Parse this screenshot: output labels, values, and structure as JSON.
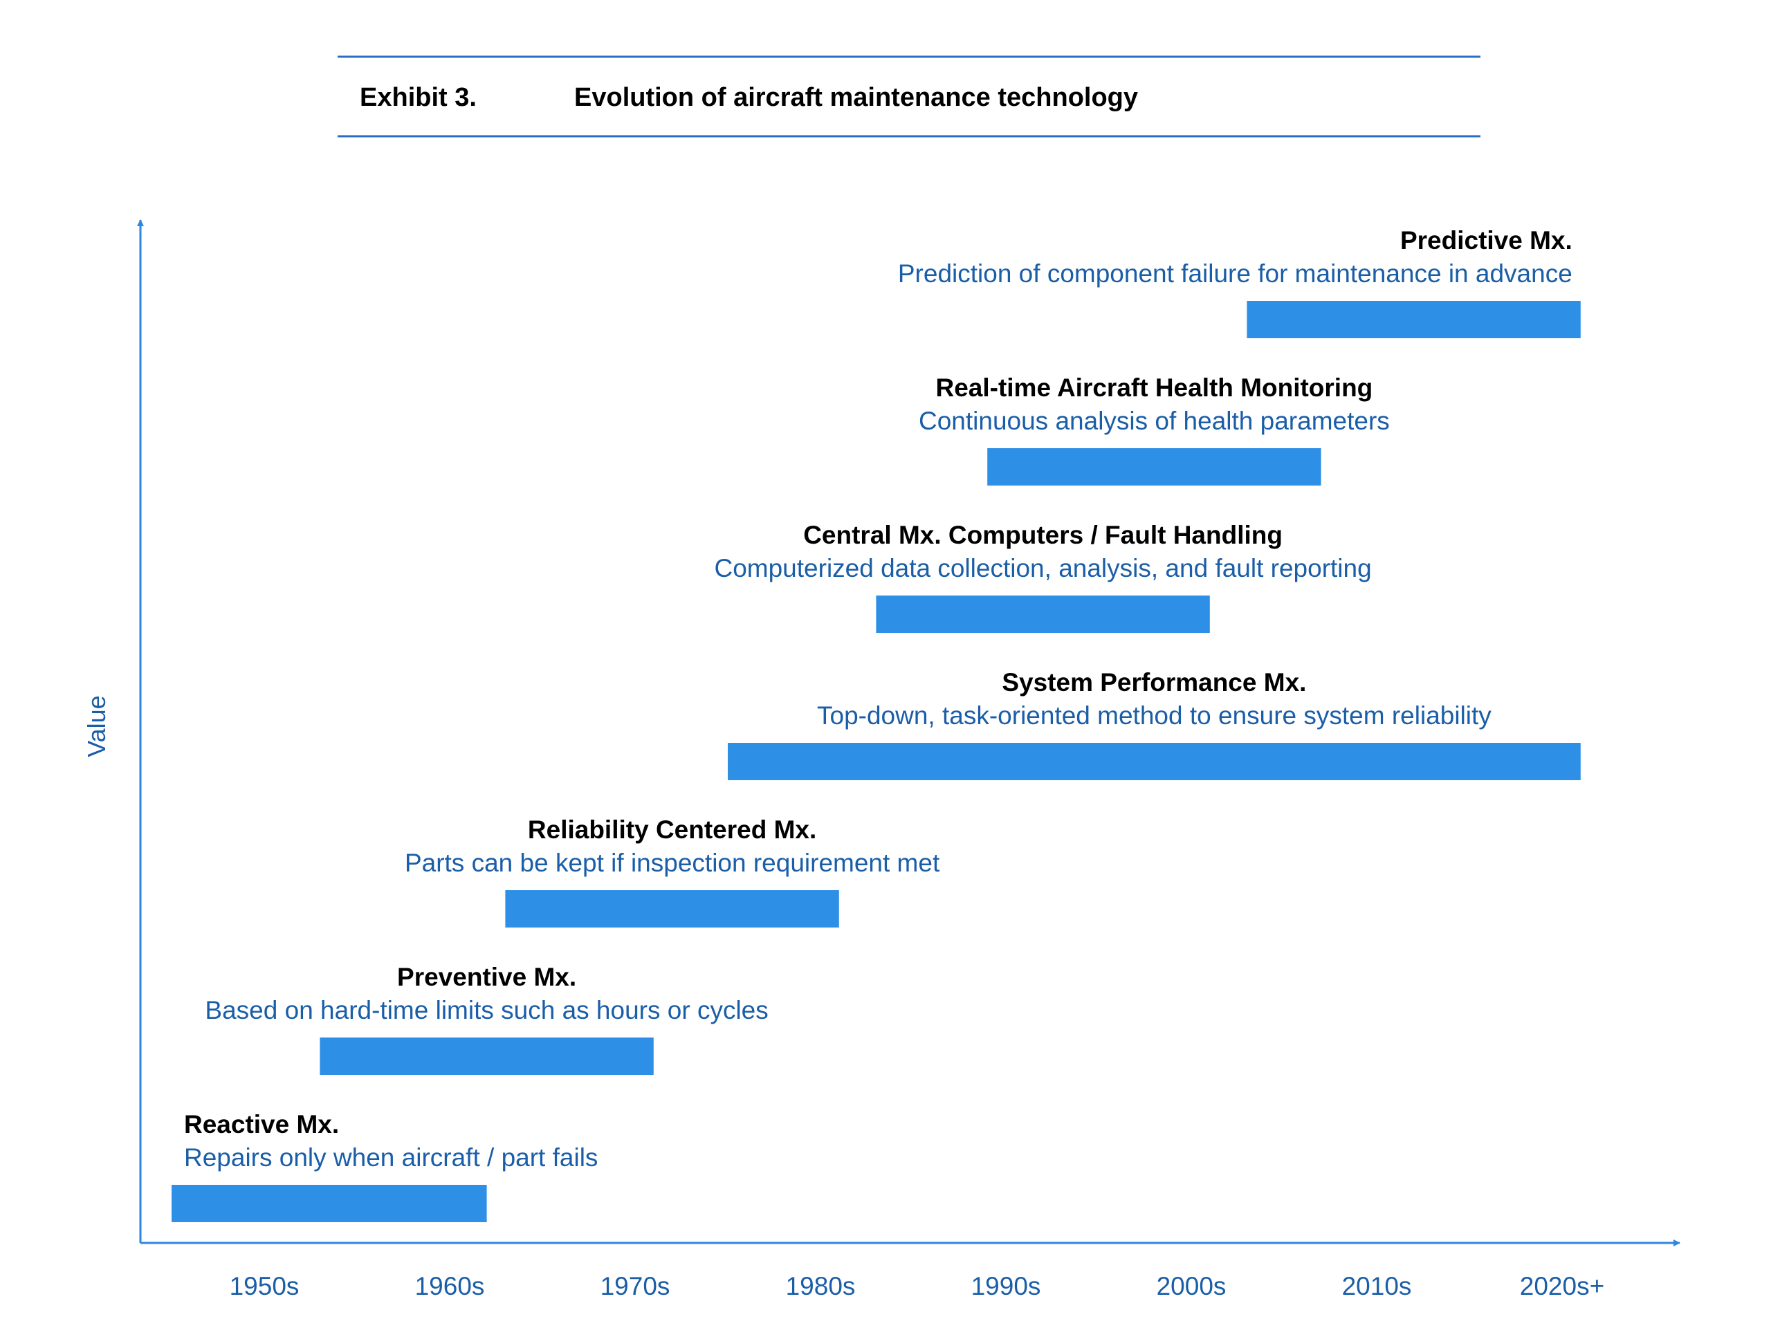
{
  "exhibit": {
    "label": "Exhibit 3.",
    "title": "Evolution of aircraft maintenance technology"
  },
  "chart_data": {
    "type": "bar",
    "orientation": "horizontal-timeline",
    "ylabel": "Value",
    "x_ticks": [
      "1950s",
      "1960s",
      "1970s",
      "1980s",
      "1990s",
      "2000s",
      "2010s",
      "2020s+"
    ],
    "x_range": [
      1950,
      2030
    ],
    "grid": false,
    "legend": "none",
    "colors": {
      "bar": "#2e8fe6",
      "axis": "#2e86de",
      "rule": "#2b6cc4"
    },
    "series": [
      {
        "name": "Reactive Mx.",
        "description": "Repairs only when aircraft / part fails",
        "start": 1950,
        "end": 1967
      },
      {
        "name": "Preventive Mx.",
        "description": "Based on hard-time limits such as hours or cycles",
        "start": 1958,
        "end": 1976
      },
      {
        "name": "Reliability Centered Mx.",
        "description": "Parts can be kept if inspection requirement met",
        "start": 1968,
        "end": 1986
      },
      {
        "name": "System Performance Mx.",
        "description": "Top-down, task-oriented method to ensure system reliability",
        "start": 1980,
        "end": 2026
      },
      {
        "name": "Central Mx. Computers / Fault Handling",
        "description": "Computerized data collection, analysis, and fault reporting",
        "start": 1988,
        "end": 2006
      },
      {
        "name": "Real-time Aircraft Health Monitoring",
        "description": "Continuous analysis of health parameters",
        "start": 1994,
        "end": 2012
      },
      {
        "name": "Predictive Mx.",
        "description": "Prediction of component failure for maintenance in advance",
        "start": 2008,
        "end": 2026
      }
    ]
  }
}
